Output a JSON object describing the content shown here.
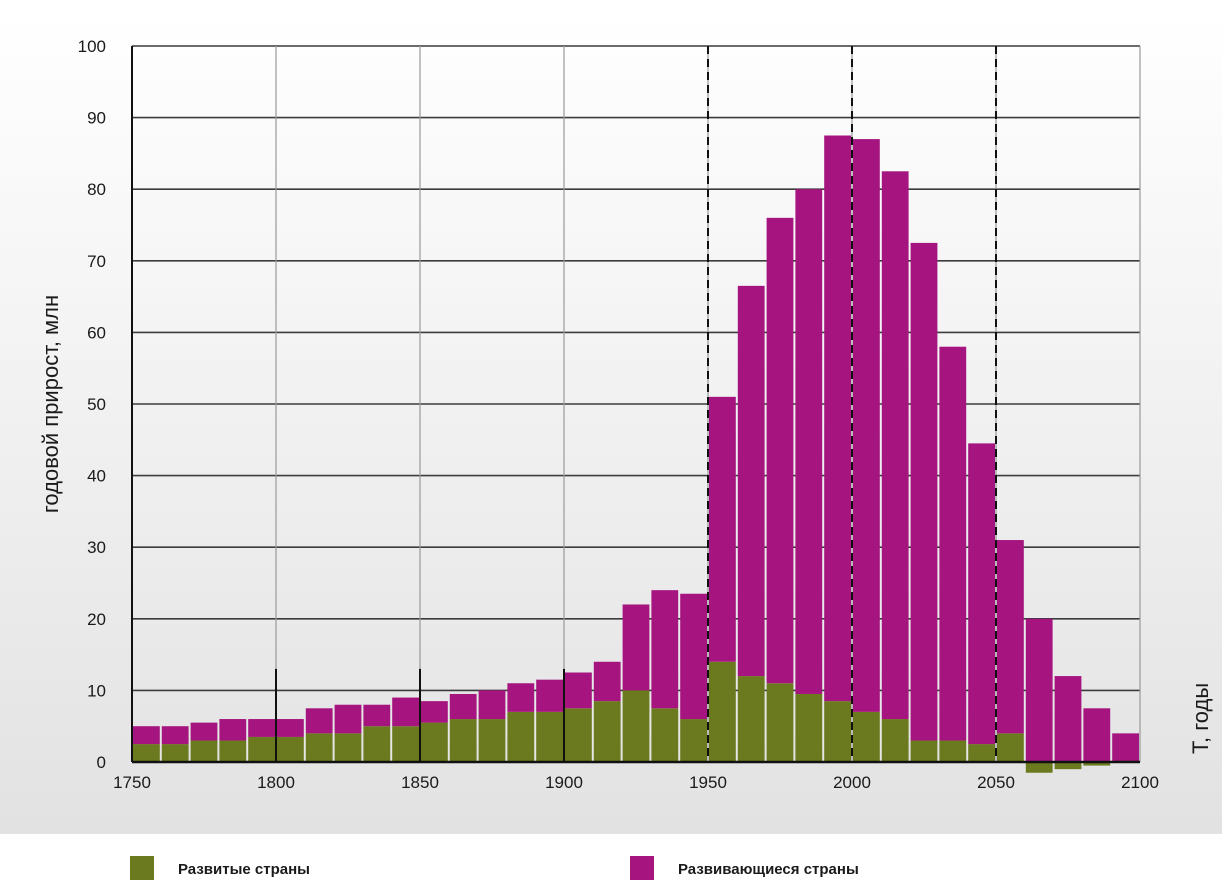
{
  "chart_data": {
    "type": "bar",
    "stacked": true,
    "ylabel": "годовой прирост, млн",
    "xlabel": "Т, годы",
    "xlim": [
      1750,
      2100
    ],
    "ylim": [
      0,
      100
    ],
    "x_ticks": [
      1750,
      1800,
      1850,
      1900,
      1950,
      2000,
      2050,
      2100
    ],
    "x_tick_labels": [
      "1750",
      "1800",
      "1850",
      "1900",
      "1950",
      "2000",
      "2050",
      "2100"
    ],
    "y_ticks": [
      0,
      10,
      20,
      30,
      40,
      50,
      60,
      70,
      80,
      90,
      100
    ],
    "y_tick_labels": [
      "0",
      "10",
      "20",
      "30",
      "40",
      "50",
      "60",
      "70",
      "80",
      "90",
      "100"
    ],
    "grid": true,
    "legend_position": "bottom",
    "bar_period_years": 10,
    "x": [
      1750,
      1760,
      1770,
      1780,
      1790,
      1800,
      1810,
      1820,
      1830,
      1840,
      1850,
      1860,
      1870,
      1880,
      1890,
      1900,
      1910,
      1920,
      1930,
      1940,
      1950,
      1960,
      1970,
      1980,
      1990,
      2000,
      2010,
      2020,
      2030,
      2040,
      2050,
      2060,
      2070,
      2080,
      2090
    ],
    "series": [
      {
        "name": "Развитые страны",
        "color": "#6b7a1e",
        "values": [
          2.5,
          2.5,
          3,
          3,
          3.5,
          3.5,
          4,
          4,
          5,
          5,
          5.5,
          6,
          6,
          7,
          7,
          7.5,
          8.5,
          10,
          7.5,
          6,
          14,
          12,
          11,
          9.5,
          8.5,
          7,
          6,
          3,
          3,
          2.5,
          4,
          -1.5,
          -1,
          -0.5,
          0
        ]
      },
      {
        "name": "Развивающиеся страны",
        "color": "#a6157f",
        "values": [
          2.5,
          2.5,
          2.5,
          3,
          2.5,
          2.5,
          3.5,
          4,
          3,
          4,
          3,
          3.5,
          4,
          4,
          4.5,
          5,
          5.5,
          12,
          16.5,
          17.5,
          37,
          54.5,
          65,
          70.5,
          79,
          80,
          76.5,
          69.5,
          55,
          42,
          27,
          20,
          12,
          7.5,
          4
        ]
      }
    ]
  }
}
